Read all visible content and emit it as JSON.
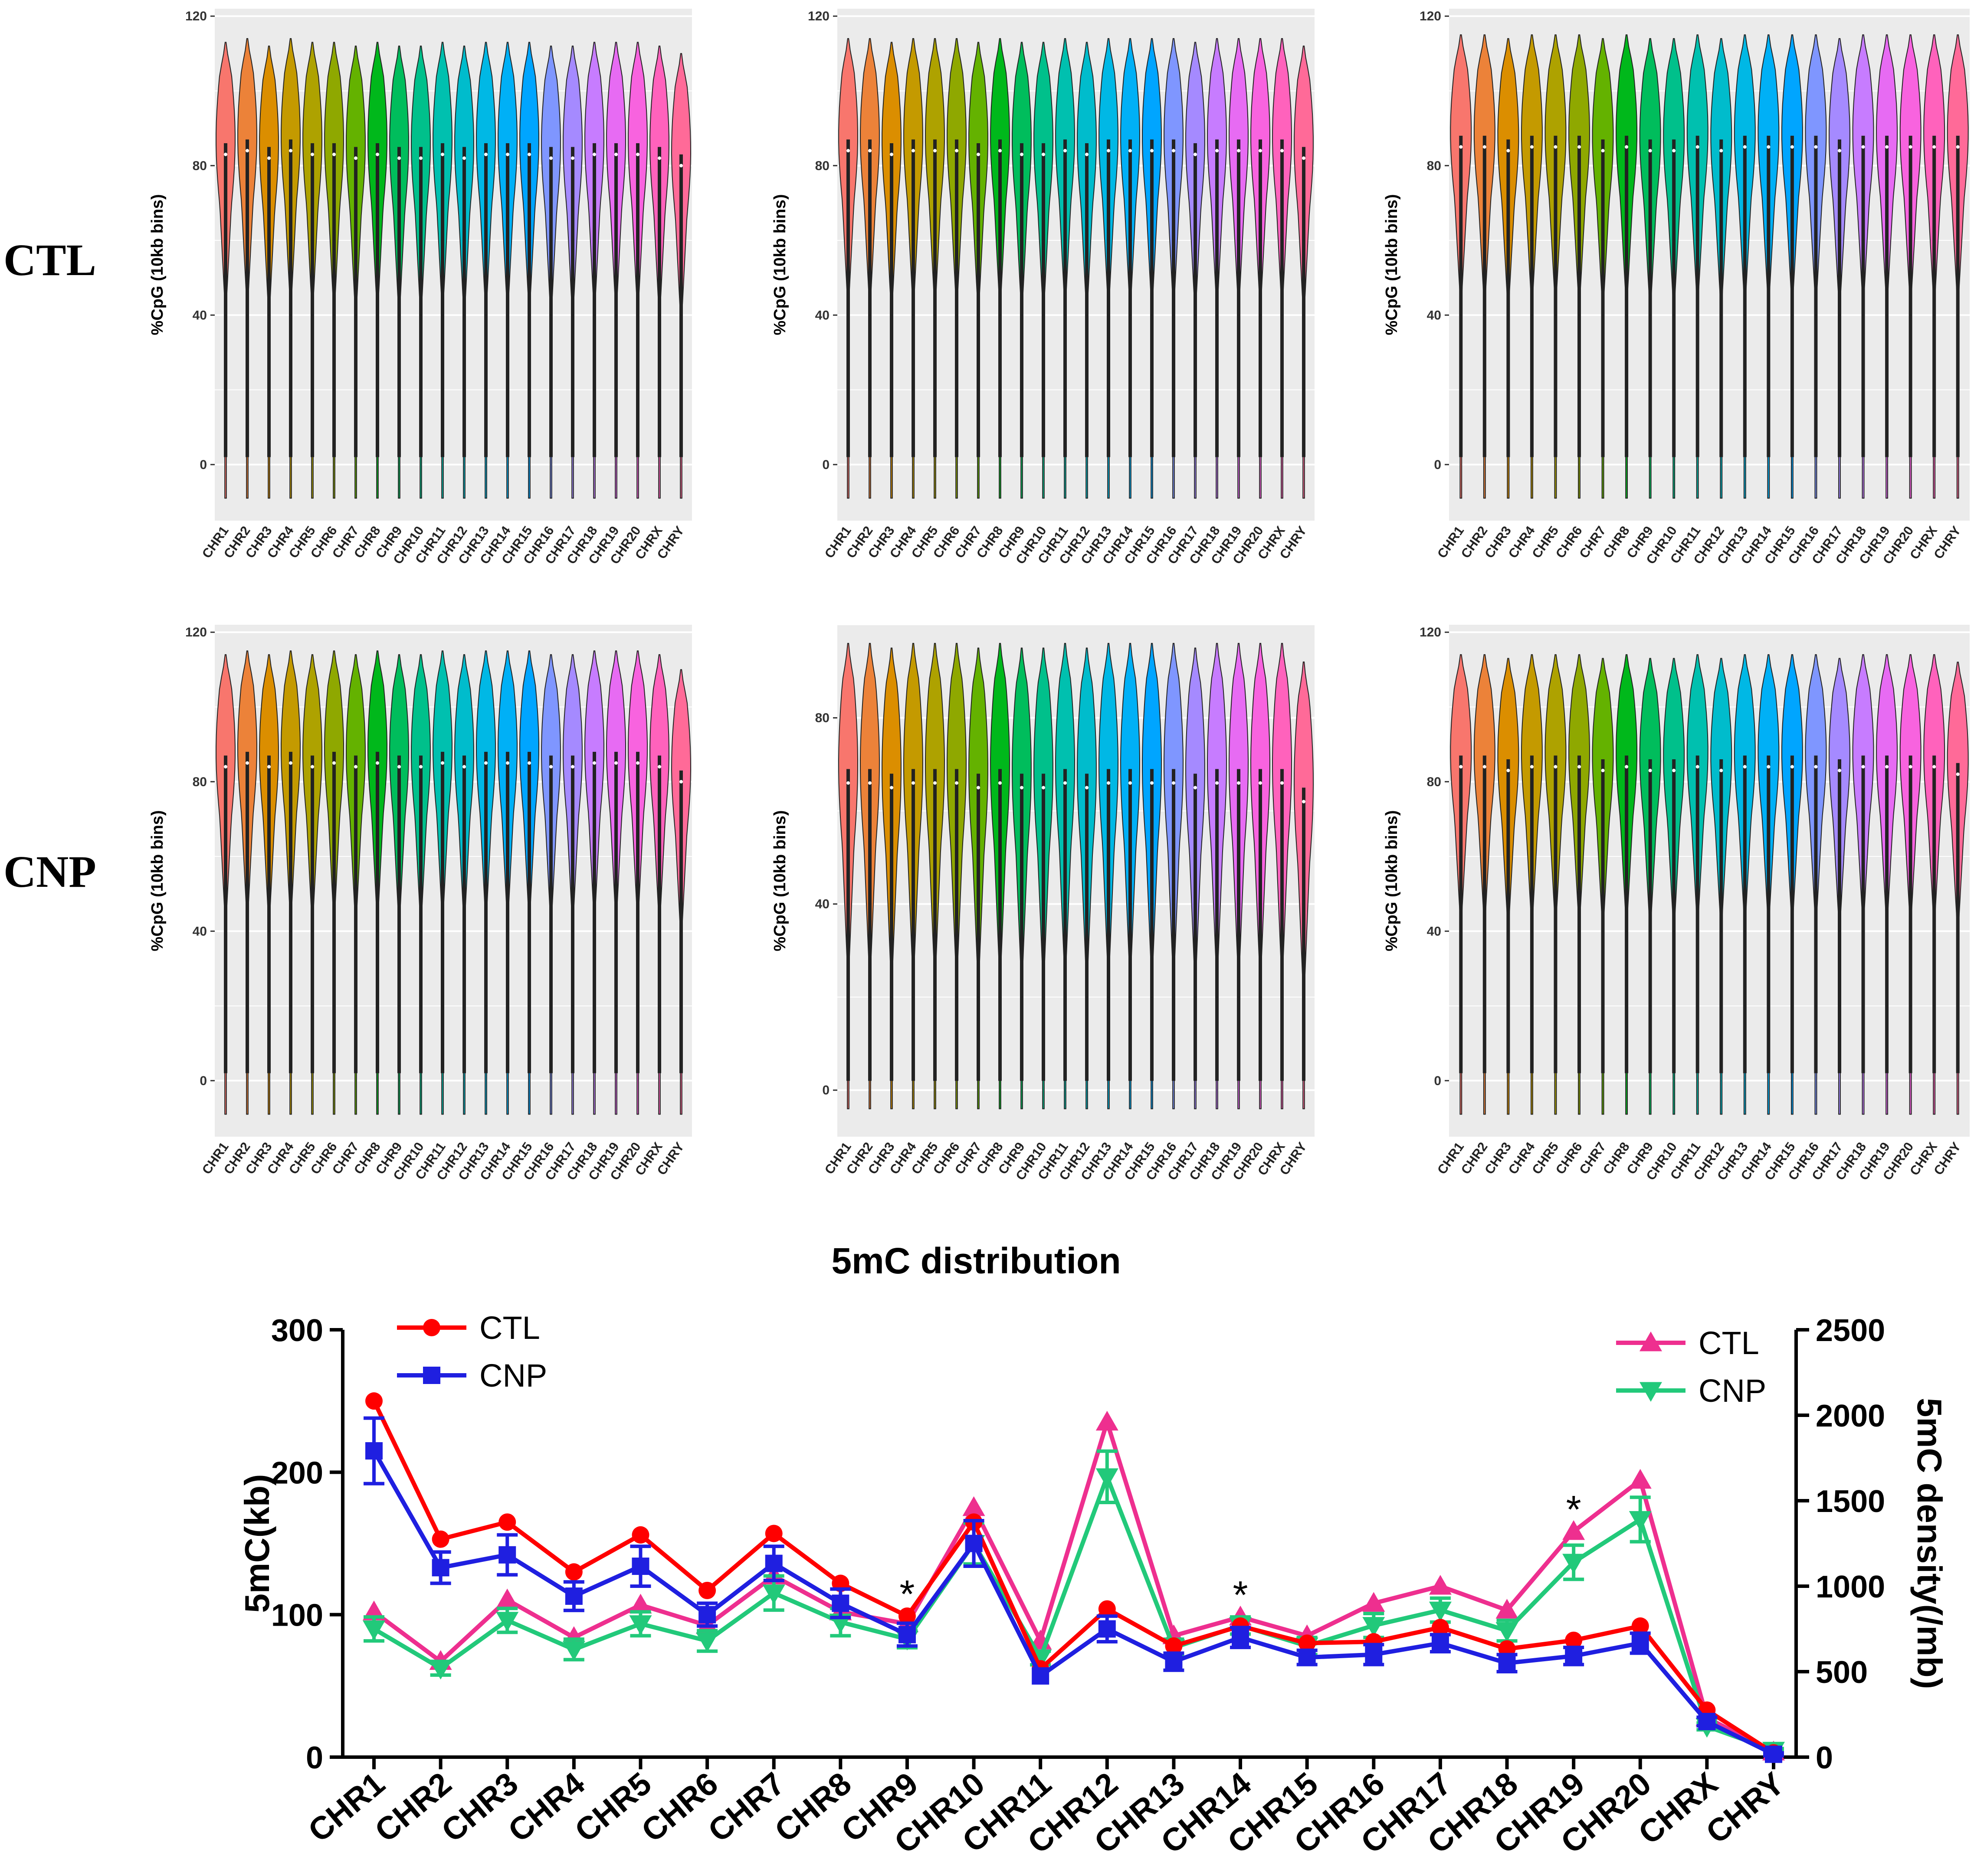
{
  "row_labels": [
    "CTL",
    "CNP"
  ],
  "colors": {
    "ctl_count": "#ff0000",
    "cnp_count": "#1f1fe0",
    "ctl_density": "#ee2f8f",
    "cnp_density": "#22c97a",
    "panel_bg": "#ebebeb",
    "grid": "#ffffff"
  },
  "chart_data": [
    {
      "type": "violin",
      "panel": "CTL-1",
      "ylabel": "%CpG (10kb bins)",
      "yticks": [
        0,
        40,
        80,
        120
      ],
      "ylim": [
        -15,
        122
      ],
      "categories": [
        "CHR1",
        "CHR2",
        "CHR3",
        "CHR4",
        "CHR5",
        "CHR6",
        "CHR7",
        "CHR8",
        "CHR9",
        "CHR10",
        "CHR11",
        "CHR12",
        "CHR13",
        "CHR14",
        "CHR15",
        "CHR16",
        "CHR17",
        "CHR18",
        "CHR19",
        "CHR20",
        "CHRX",
        "CHRY"
      ],
      "medians": [
        83,
        84,
        82,
        84,
        83,
        83,
        82,
        83,
        82,
        82,
        83,
        82,
        83,
        83,
        83,
        82,
        82,
        83,
        83,
        83,
        82,
        80
      ]
    },
    {
      "type": "violin",
      "panel": "CTL-2",
      "ylabel": "%CpG (10kb bins)",
      "yticks": [
        0,
        40,
        80,
        120
      ],
      "ylim": [
        -15,
        122
      ],
      "categories": [
        "CHR1",
        "CHR2",
        "CHR3",
        "CHR4",
        "CHR5",
        "CHR6",
        "CHR7",
        "CHR8",
        "CHR9",
        "CHR10",
        "CHR11",
        "CHR12",
        "CHR13",
        "CHR14",
        "CHR15",
        "CHR16",
        "CHR17",
        "CHR18",
        "CHR19",
        "CHR20",
        "CHRX",
        "CHRY"
      ],
      "medians": [
        84,
        84,
        83,
        84,
        84,
        84,
        83,
        84,
        83,
        83,
        84,
        83,
        84,
        84,
        84,
        84,
        83,
        84,
        84,
        84,
        84,
        82
      ]
    },
    {
      "type": "violin",
      "panel": "CTL-3",
      "ylabel": "%CpG (10kb bins)",
      "yticks": [
        0,
        40,
        80,
        120
      ],
      "ylim": [
        -15,
        122
      ],
      "categories": [
        "CHR1",
        "CHR2",
        "CHR3",
        "CHR4",
        "CHR5",
        "CHR6",
        "CHR7",
        "CHR8",
        "CHR9",
        "CHR10",
        "CHR11",
        "CHR12",
        "CHR13",
        "CHR14",
        "CHR15",
        "CHR16",
        "CHR17",
        "CHR18",
        "CHR19",
        "CHR20",
        "CHRX",
        "CHRY"
      ],
      "medians": [
        85,
        85,
        84,
        85,
        85,
        85,
        84,
        85,
        84,
        84,
        85,
        84,
        85,
        85,
        85,
        85,
        84,
        85,
        85,
        85,
        85,
        85
      ]
    },
    {
      "type": "violin",
      "panel": "CNP-1",
      "ylabel": "%CpG (10kb bins)",
      "yticks": [
        0,
        40,
        80,
        120
      ],
      "ylim": [
        -15,
        122
      ],
      "categories": [
        "CHR1",
        "CHR2",
        "CHR3",
        "CHR4",
        "CHR5",
        "CHR6",
        "CHR7",
        "CHR8",
        "CHR9",
        "CHR10",
        "CHR11",
        "CHR12",
        "CHR13",
        "CHR14",
        "CHR15",
        "CHR16",
        "CHR17",
        "CHR18",
        "CHR19",
        "CHR20",
        "CHRX",
        "CHRY"
      ],
      "medians": [
        84,
        85,
        84,
        85,
        84,
        85,
        84,
        85,
        84,
        84,
        85,
        84,
        85,
        85,
        85,
        84,
        84,
        85,
        85,
        85,
        84,
        80
      ]
    },
    {
      "type": "violin",
      "panel": "CNP-2",
      "ylabel": "%CpG (10kb bins)",
      "yticks": [
        0,
        40,
        80
      ],
      "ylim": [
        -10,
        100
      ],
      "categories": [
        "CHR1",
        "CHR2",
        "CHR3",
        "CHR4",
        "CHR5",
        "CHR6",
        "CHR7",
        "CHR8",
        "CHR9",
        "CHR10",
        "CHR11",
        "CHR12",
        "CHR13",
        "CHR14",
        "CHR15",
        "CHR16",
        "CHR17",
        "CHR18",
        "CHR19",
        "CHR20",
        "CHRX",
        "CHRY"
      ],
      "medians": [
        66,
        66,
        65,
        66,
        66,
        66,
        65,
        66,
        65,
        65,
        66,
        65,
        66,
        66,
        66,
        66,
        65,
        66,
        66,
        66,
        66,
        62
      ]
    },
    {
      "type": "violin",
      "panel": "CNP-3",
      "ylabel": "%CpG (10kb bins)",
      "yticks": [
        0,
        40,
        80,
        120
      ],
      "ylim": [
        -15,
        122
      ],
      "categories": [
        "CHR1",
        "CHR2",
        "CHR3",
        "CHR4",
        "CHR5",
        "CHR6",
        "CHR7",
        "CHR8",
        "CHR9",
        "CHR10",
        "CHR11",
        "CHR12",
        "CHR13",
        "CHR14",
        "CHR15",
        "CHR16",
        "CHR17",
        "CHR18",
        "CHR19",
        "CHR20",
        "CHRX",
        "CHRY"
      ],
      "medians": [
        84,
        84,
        83,
        84,
        84,
        84,
        83,
        84,
        83,
        83,
        84,
        83,
        84,
        84,
        84,
        84,
        83,
        84,
        84,
        84,
        84,
        82
      ]
    },
    {
      "type": "line",
      "title": "5mC distribution",
      "categories": [
        "CHR1",
        "CHR2",
        "CHR3",
        "CHR4",
        "CHR5",
        "CHR6",
        "CHR7",
        "CHR8",
        "CHR9",
        "CHR10",
        "CHR11",
        "CHR12",
        "CHR13",
        "CHR14",
        "CHR15",
        "CHR16",
        "CHR17",
        "CHR18",
        "CHR19",
        "CHR20",
        "CHRX",
        "CHRY"
      ],
      "ylabel": "5mC(kb)",
      "ylim": [
        0,
        300
      ],
      "yticks": [
        0,
        100,
        200,
        300
      ],
      "y2label": "5mC density(/mb)",
      "y2lim": [
        0,
        2500
      ],
      "y2ticks": [
        0,
        500,
        1000,
        1500,
        2000,
        2500
      ],
      "series": [
        {
          "name": "CTL",
          "axis": "left",
          "marker": "circle",
          "values": [
            250,
            153,
            165,
            130,
            156,
            117,
            157,
            122,
            99,
            165,
            62,
            104,
            78,
            92,
            80,
            81,
            91,
            76,
            82,
            92,
            33,
            3
          ],
          "errors": [
            0,
            0,
            0,
            0,
            0,
            0,
            0,
            0,
            0,
            0,
            0,
            0,
            0,
            0,
            0,
            0,
            0,
            0,
            0,
            0,
            0,
            0
          ]
        },
        {
          "name": "CNP",
          "axis": "left",
          "marker": "square",
          "values": [
            215,
            133,
            142,
            113,
            134,
            100,
            136,
            108,
            86,
            150,
            57,
            90,
            67,
            84,
            70,
            72,
            80,
            66,
            71,
            80,
            25,
            2
          ],
          "errors": [
            23,
            11,
            14,
            10,
            14,
            8,
            12,
            10,
            8,
            16,
            0,
            9,
            6,
            7,
            5,
            7,
            6,
            6,
            6,
            7,
            3,
            1
          ]
        },
        {
          "name": "CTL",
          "axis": "right",
          "marker": "triangle-up",
          "values": [
            850,
            560,
            920,
            700,
            890,
            770,
            1060,
            850,
            780,
            1460,
            680,
            1960,
            710,
            820,
            710,
            900,
            1000,
            860,
            1320,
            1620,
            230,
            30
          ],
          "errors": [
            0,
            0,
            0,
            0,
            0,
            0,
            0,
            0,
            0,
            0,
            0,
            0,
            0,
            0,
            0,
            0,
            0,
            0,
            0,
            0,
            0,
            0
          ]
        },
        {
          "name": "CNP",
          "axis": "right",
          "marker": "triangle-down",
          "values": [
            750,
            520,
            800,
            630,
            780,
            680,
            960,
            790,
            690,
            1250,
            580,
            1640,
            640,
            770,
            650,
            770,
            860,
            740,
            1140,
            1390,
            180,
            40
          ],
          "errors": [
            70,
            40,
            70,
            60,
            70,
            60,
            100,
            80,
            50,
            120,
            40,
            150,
            50,
            50,
            50,
            70,
            70,
            60,
            100,
            130,
            20,
            10
          ]
        }
      ],
      "significance": {
        "symbol": "*",
        "categories": [
          "CHR9",
          "CHR14",
          "CHR19"
        ]
      },
      "legend_left": [
        "CTL",
        "CNP"
      ],
      "legend_right": [
        "CTL",
        "CNP"
      ]
    }
  ]
}
